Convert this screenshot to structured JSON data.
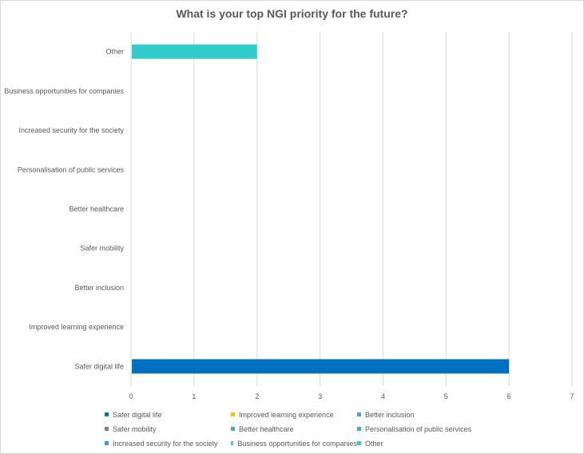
{
  "chart_data": {
    "type": "bar",
    "orientation": "horizontal",
    "title": "What is your top NGI priority for the future?",
    "categories": [
      "Safer digital life",
      "Improved learning experience",
      "Better inclusion",
      "Safer mobility",
      "Better healthcare",
      "Personalisation of public services",
      "Increased security for the society",
      "Business opportunities for companies",
      "Other"
    ],
    "values": [
      6,
      0,
      0,
      0,
      0,
      0,
      0,
      0,
      2
    ],
    "xlim": [
      0,
      7
    ],
    "xticks": [
      0,
      1,
      2,
      3,
      4,
      5,
      6,
      7
    ],
    "grid": "vertical",
    "legend": {
      "placement": "bottom",
      "entries": [
        {
          "name": "Safer digital life",
          "color": "#0070c0"
        },
        {
          "name": "Improved learning experience",
          "color": "#ffc000"
        },
        {
          "name": "Better inclusion",
          "color": "#5b9bd5"
        },
        {
          "name": "Safer mobility",
          "color": "#7f7f7f"
        },
        {
          "name": "Better healthcare",
          "color": "#4bacc6"
        },
        {
          "name": "Personalisation of public services",
          "color": "#31b6c8"
        },
        {
          "name": "Increased security for the society",
          "color": "#3c9ad6"
        },
        {
          "name": "Business opportunities for companies",
          "color": "#5fb8e8"
        },
        {
          "name": "Other",
          "color": "#33cccc"
        }
      ]
    }
  }
}
